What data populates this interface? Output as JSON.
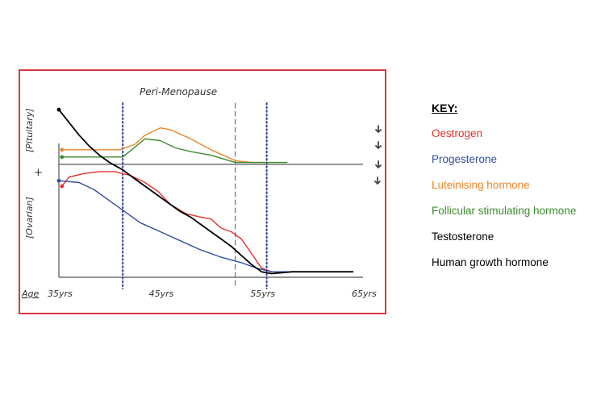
{
  "key": {
    "title": "KEY:",
    "items": [
      {
        "label": "Oestrogen",
        "color": "#e5302b"
      },
      {
        "label": "Progesterone",
        "color": "#2f4f9c"
      },
      {
        "label": "Luteinising hormone",
        "color": "#e8862a"
      },
      {
        "label": "Follicular stimulating hormone",
        "color": "#3f8a2e"
      },
      {
        "label": "Testosterone",
        "color": "#000000"
      },
      {
        "label": "Human growth hormone",
        "color": "#000000"
      }
    ]
  },
  "chart_data": {
    "type": "line",
    "title": "",
    "annotation": "Peri-Menopause",
    "xlabel": "Age",
    "ylabel_top": "[Pituitary]",
    "ylabel_bottom": "[Ovarian]",
    "plus_sign": "+",
    "xticks": [
      {
        "value": 35,
        "label": "35yrs"
      },
      {
        "value": 45,
        "label": "45yrs"
      },
      {
        "value": 55,
        "label": "55yrs"
      },
      {
        "value": 65,
        "label": "65yrs"
      }
    ],
    "xlim": [
      35,
      65
    ],
    "ylim": [
      0,
      100
    ],
    "baseline_y": 62,
    "vlines": [
      {
        "x": 41.3,
        "style": "dotted",
        "color": "#2c3c9a"
      },
      {
        "x": 52.4,
        "style": "dashed",
        "color": "#555555"
      },
      {
        "x": 55.5,
        "style": "dotted",
        "color": "#2c3c9a"
      }
    ],
    "series": [
      {
        "name": "Oestrogen",
        "color": "#e5302b",
        "x": [
          35.3,
          36,
          37.5,
          39,
          40.5,
          42,
          43.5,
          44.8,
          46,
          47.5,
          49,
          50,
          51,
          52,
          53,
          54,
          55,
          56,
          58,
          60,
          62,
          64
        ],
        "y": [
          50,
          55,
          57,
          58,
          58,
          56,
          52,
          47,
          40,
          35,
          33,
          32,
          27,
          25,
          21,
          13,
          5,
          3,
          3,
          3,
          3,
          3
        ]
      },
      {
        "name": "Progesterone",
        "color": "#2f4f9c",
        "x": [
          35,
          37,
          38.5,
          40,
          41.5,
          43,
          45,
          47,
          49,
          51,
          53,
          54.5,
          56,
          58,
          60,
          62,
          64
        ],
        "y": [
          53,
          52,
          48,
          42,
          36,
          30,
          25,
          20,
          15,
          11,
          8,
          5,
          3,
          3,
          3,
          3,
          3
        ]
      },
      {
        "name": "Luteinising hormone",
        "color": "#e8862a",
        "x": [
          35.3,
          37,
          39,
          41,
          42.5,
          43.5,
          45,
          46,
          48,
          50,
          52.4,
          54,
          55.5
        ],
        "y": [
          70,
          70,
          70,
          70,
          73,
          78,
          82,
          81,
          76,
          70,
          64,
          63,
          63
        ]
      },
      {
        "name": "Follicular stimulating hormone",
        "color": "#3f8a2e",
        "x": [
          35.3,
          37,
          39,
          41.3,
          43.5,
          45,
          46.5,
          48,
          50,
          52.4,
          54,
          56,
          57.5
        ],
        "y": [
          66,
          66,
          66,
          66,
          76,
          75,
          71,
          69,
          67,
          63,
          63,
          63,
          63
        ]
      },
      {
        "name": "Testosterone",
        "color": "#000000",
        "x": [
          35,
          36,
          37,
          38,
          39,
          40,
          41.3,
          42,
          43,
          44,
          45,
          46,
          47,
          48,
          49,
          50,
          51,
          52,
          53,
          54,
          55,
          56,
          58,
          60,
          62,
          64
        ],
        "y": [
          92,
          85,
          78,
          72,
          67,
          63,
          59,
          56,
          52,
          48,
          44,
          40,
          36,
          33,
          29,
          25,
          21,
          17,
          12,
          7,
          3,
          2,
          3,
          3,
          3,
          3
        ]
      }
    ]
  }
}
